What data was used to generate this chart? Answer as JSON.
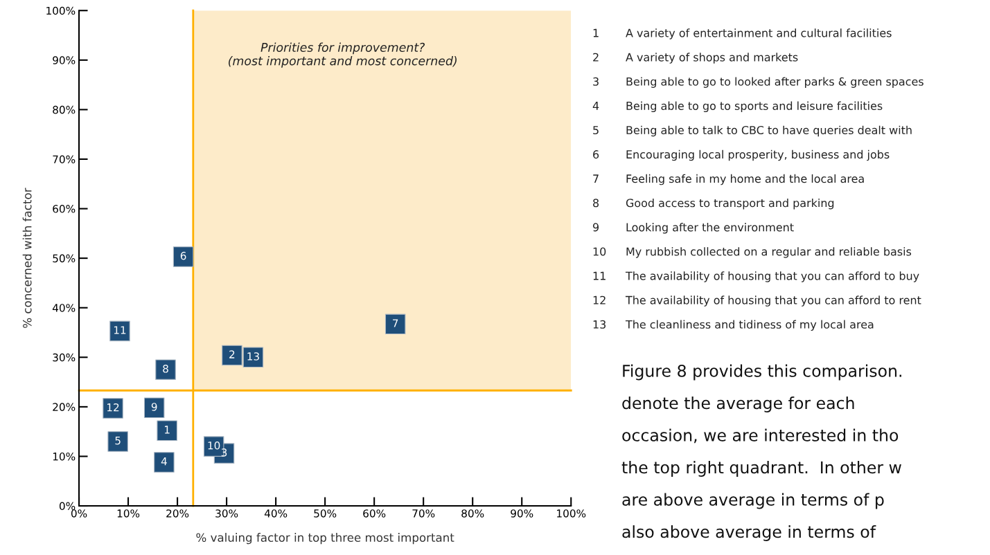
{
  "chart_data": {
    "type": "scatter",
    "xlabel": "% valuing factor in top three most important",
    "ylabel": "% concerned with factor",
    "series": [
      {
        "name": "1",
        "color": "#1f4e79",
        "x": [
          17.9
        ],
        "values": [
          15.2
        ]
      },
      {
        "name": "2",
        "color": "#1f4e79",
        "x": [
          31.1
        ],
        "values": [
          30.4
        ]
      },
      {
        "name": "3",
        "color": "#1f4e79",
        "x": [
          29.5
        ],
        "values": [
          10.6
        ]
      },
      {
        "name": "4",
        "color": "#1f4e79",
        "x": [
          17.3
        ],
        "values": [
          8.8
        ]
      },
      {
        "name": "5",
        "color": "#1f4e79",
        "x": [
          7.9
        ],
        "values": [
          13.0
        ]
      },
      {
        "name": "6",
        "color": "#1f4e79",
        "x": [
          21.2
        ],
        "values": [
          50.3
        ]
      },
      {
        "name": "7",
        "color": "#1f4e79",
        "x": [
          64.3
        ],
        "values": [
          36.7
        ]
      },
      {
        "name": "8",
        "color": "#1f4e79",
        "x": [
          17.6
        ],
        "values": [
          27.5
        ]
      },
      {
        "name": "9",
        "color": "#1f4e79",
        "x": [
          15.3
        ],
        "values": [
          19.8
        ]
      },
      {
        "name": "10",
        "color": "#1f4e79",
        "x": [
          27.4
        ],
        "values": [
          12.0
        ]
      },
      {
        "name": "11",
        "color": "#1f4e79",
        "x": [
          8.3
        ],
        "values": [
          35.3
        ]
      },
      {
        "name": "12",
        "color": "#1f4e79",
        "x": [
          6.9
        ],
        "values": [
          19.7
        ]
      },
      {
        "name": "13",
        "color": "#1f4e79",
        "x": [
          35.4
        ],
        "values": [
          30.0
        ]
      }
    ],
    "marker": "square",
    "xlim": [
      0,
      100
    ],
    "ylim": [
      0,
      100
    ],
    "xticks": [
      {
        "value": 0,
        "label": "0%"
      },
      {
        "value": 10,
        "label": "10%"
      },
      {
        "value": 20,
        "label": "20%"
      },
      {
        "value": 30,
        "label": "30%"
      },
      {
        "value": 40,
        "label": "40%"
      },
      {
        "value": 50,
        "label": "50%"
      },
      {
        "value": 60,
        "label": "60%"
      },
      {
        "value": 70,
        "label": "70%"
      },
      {
        "value": 80,
        "label": "80%"
      },
      {
        "value": 90,
        "label": "90%"
      },
      {
        "value": 100,
        "label": "100%"
      }
    ],
    "yticks": [
      {
        "value": 0,
        "label": "0%"
      },
      {
        "value": 10,
        "label": "10%"
      },
      {
        "value": 20,
        "label": "20%"
      },
      {
        "value": 30,
        "label": "30%"
      },
      {
        "value": 40,
        "label": "40%"
      },
      {
        "value": 50,
        "label": "50%"
      },
      {
        "value": 60,
        "label": "60%"
      },
      {
        "value": 70,
        "label": "70%"
      },
      {
        "value": 80,
        "label": "80%"
      },
      {
        "value": 90,
        "label": "90%"
      },
      {
        "value": 100,
        "label": "100%"
      }
    ],
    "ref_lines": [
      {
        "axis": "x",
        "value": 23.2,
        "color": "#ffb000"
      },
      {
        "axis": "y",
        "value": 23.3,
        "color": "#ffb000"
      }
    ],
    "bands": [
      {
        "axis": "x",
        "from": 23.2,
        "to": 100,
        "color": "#fdebc9",
        "label": "Priorities for improvement?\n(most important and most concerned)"
      }
    ],
    "grid": false,
    "legend": false,
    "annotations": [
      "1\tA variety of entertainment and cultural facilities",
      "2\tA variety of shops and markets",
      "3\tBeing able to go to looked after parks & green spaces",
      "4\tBeing able to go to sports and leisure facilities",
      "5\tBeing able to talk to CBC to have queries dealt with",
      "6\tEncouraging local prosperity, business and jobs",
      "7\tFeeling safe in my home and the local area",
      "8\tGood access to transport and parking",
      "9\tLooking after the environment",
      "10\tMy rubbish collected on a regular and reliable basis",
      "11\tThe availability of housing that you can afford to buy",
      "12\tThe availability of housing that you can afford to rent",
      "13\tThe cleanliness and tidiness of my local area",
      "Figure 8 provides this comparison.",
      "denote the average for each",
      "occasion, we are interested in tho",
      "the top right quadrant.  In other w",
      "are above average in terms of p",
      "also above average in terms of"
    ]
  }
}
